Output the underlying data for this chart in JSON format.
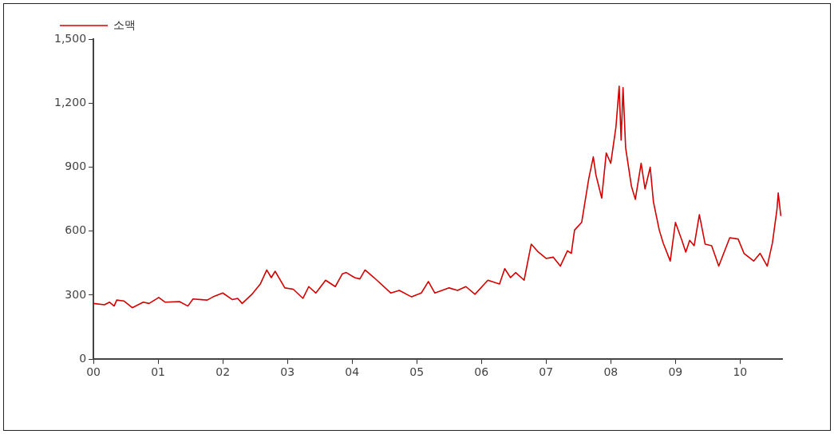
{
  "chart_data": {
    "type": "line",
    "legend": "top left",
    "grid": false,
    "marker": "none",
    "line_style": "solid",
    "xlim": [
      0,
      10.65
    ],
    "xticks": [
      {
        "value": 0,
        "label": "00"
      },
      {
        "value": 1,
        "label": "01"
      },
      {
        "value": 2,
        "label": "02"
      },
      {
        "value": 3,
        "label": "03"
      },
      {
        "value": 4,
        "label": "04"
      },
      {
        "value": 5,
        "label": "05"
      },
      {
        "value": 6,
        "label": "06"
      },
      {
        "value": 7,
        "label": "07"
      },
      {
        "value": 8,
        "label": "08"
      },
      {
        "value": 9,
        "label": "09"
      },
      {
        "value": 10,
        "label": "10"
      }
    ],
    "ylim": [
      0,
      1500
    ],
    "yticks": [
      0,
      300,
      600,
      900,
      {
        "value": 1200,
        "label": "1,200"
      },
      {
        "value": 1500,
        "label": "1,500"
      }
    ],
    "series": [
      {
        "name": "소맥",
        "color": "#d40000",
        "x": [
          0,
          0.17,
          0.25,
          0.32,
          0.36,
          0.47,
          0.6,
          0.77,
          0.86,
          1.01,
          1.11,
          1.33,
          1.46,
          1.54,
          1.76,
          1.85,
          2.0,
          2.15,
          2.23,
          2.3,
          2.45,
          2.58,
          2.68,
          2.75,
          2.81,
          2.96,
          3.09,
          3.24,
          3.33,
          3.44,
          3.59,
          3.74,
          3.85,
          3.91,
          4.04,
          4.12,
          4.2,
          4.34,
          4.6,
          4.73,
          4.92,
          5.07,
          5.18,
          5.28,
          5.5,
          5.63,
          5.76,
          5.9,
          6.1,
          6.28,
          6.36,
          6.45,
          6.53,
          6.66,
          6.77,
          6.88,
          7.0,
          7.11,
          7.22,
          7.33,
          7.39,
          7.44,
          7.55,
          7.66,
          7.73,
          7.77,
          7.86,
          7.93,
          8.0,
          8.08,
          8.13,
          8.16,
          8.19,
          8.23,
          8.32,
          8.38,
          8.47,
          8.53,
          8.61,
          8.66,
          8.75,
          8.81,
          8.92,
          9.0,
          9.1,
          9.16,
          9.22,
          9.29,
          9.37,
          9.46,
          9.56,
          9.67,
          9.84,
          9.97,
          10.06,
          10.21,
          10.31,
          10.42,
          10.5,
          10.57,
          10.59,
          10.63
        ],
        "values": [
          261,
          255,
          267,
          249,
          277,
          273,
          241,
          267,
          261,
          289,
          267,
          270,
          249,
          282,
          277,
          292,
          310,
          279,
          285,
          261,
          304,
          352,
          418,
          382,
          412,
          334,
          328,
          285,
          340,
          310,
          370,
          340,
          400,
          406,
          382,
          376,
          418,
          382,
          310,
          322,
          292,
          310,
          364,
          310,
          334,
          322,
          340,
          304,
          370,
          352,
          424,
          382,
          406,
          370,
          539,
          502,
          472,
          478,
          436,
          508,
          496,
          605,
          641,
          846,
          948,
          864,
          755,
          966,
          918,
          1087,
          1279,
          1026,
          1273,
          990,
          810,
          749,
          918,
          798,
          900,
          737,
          605,
          545,
          460,
          641,
          557,
          502,
          557,
          532,
          677,
          539,
          532,
          436,
          569,
          563,
          496,
          460,
          496,
          436,
          545,
          701,
          779,
          671
        ]
      }
    ]
  }
}
